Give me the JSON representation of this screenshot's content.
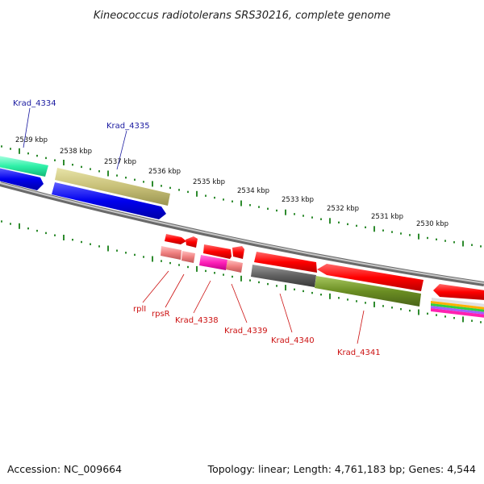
{
  "title": "Kineococcus radiotolerans SRS30216, complete genome",
  "footer": {
    "accession": "Accession: NC_009664",
    "summary": "Topology: linear; Length: 4,761,183 bp; Genes: 4,544"
  },
  "kbp_labels": [
    "2539 kbp",
    "2538 kbp",
    "2537 kbp",
    "2536 kbp",
    "2535 kbp",
    "2534 kbp",
    "2533 kbp",
    "2532 kbp",
    "2531 kbp",
    "2530 kbp"
  ],
  "gene_labels": {
    "krad_4334": "Krad_4334",
    "krad_4335": "Krad_4335",
    "rpll": "rplI",
    "rpsr": "rpsR",
    "krad_4338": "Krad_4338",
    "krad_4339": "Krad_4339",
    "krad_4340": "Krad_4340",
    "krad_4341": "Krad_4341"
  },
  "colors": {
    "upper_label": "#1a1aa0",
    "lower_label": "#cc1111",
    "ticks": "#2e8b2e",
    "backbone": "#8a8a8a"
  }
}
